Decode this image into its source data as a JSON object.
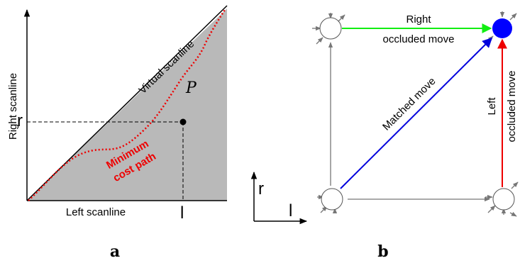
{
  "panel_a": {
    "y_axis_label": "Right scanline",
    "diagonal_label": "Virtual scanline",
    "region_label": "P",
    "r_label": "r",
    "path_label": [
      "Minimum",
      "cost path"
    ],
    "x_axis_label": "Left scanline",
    "l_label": "l",
    "caption": "a"
  },
  "panel_b": {
    "top_edge_label": [
      "Right",
      "occluded move"
    ],
    "diagonal_label": "Matched move",
    "right_edge_label": [
      "Left",
      "occluded move"
    ],
    "axis_r": "r",
    "axis_l": "l",
    "caption": "b"
  }
}
